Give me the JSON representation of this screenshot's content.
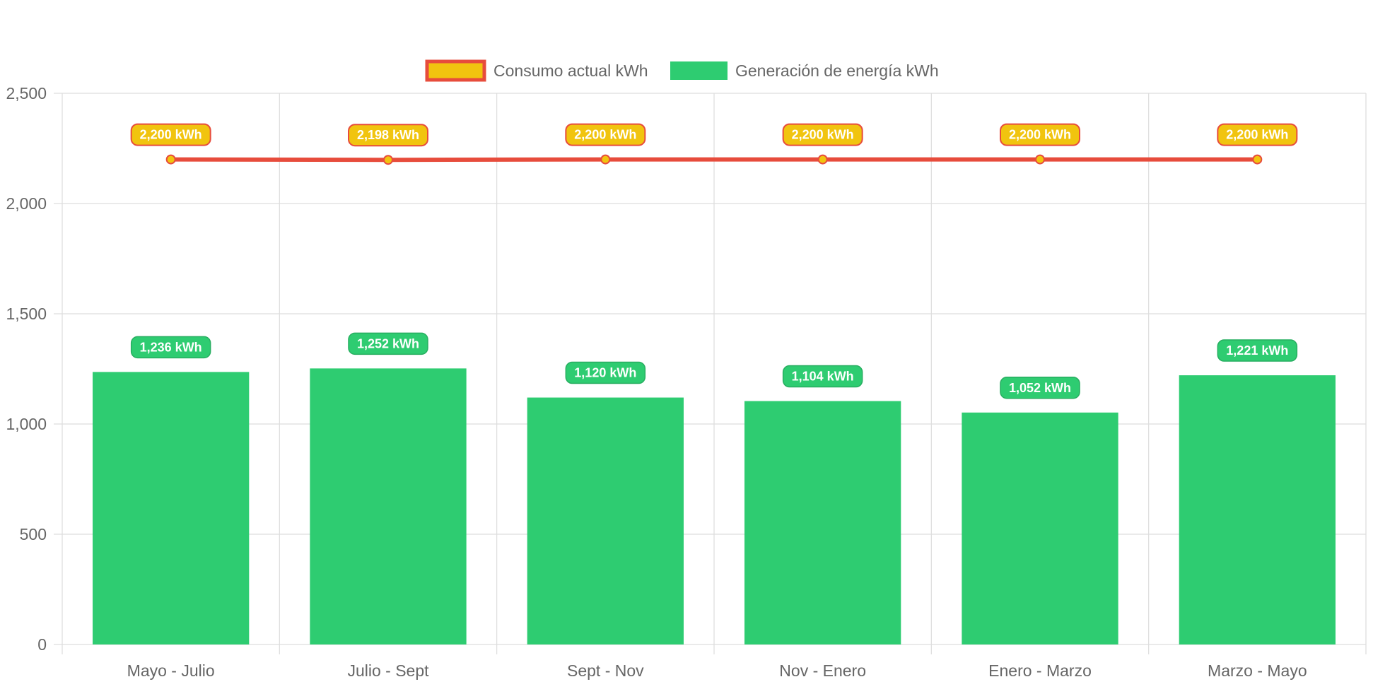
{
  "chart_data": {
    "type": "bar",
    "categories": [
      "Mayo - Julio",
      "Julio - Sept",
      "Sept - Nov",
      "Nov - Enero",
      "Enero - Marzo",
      "Marzo - Mayo"
    ],
    "series": [
      {
        "name": "Consumo actual kWh",
        "type": "line",
        "values": [
          2200,
          2198,
          2200,
          2200,
          2200,
          2200
        ],
        "data_labels": [
          "2,200 kWh",
          "2,198 kWh",
          "2,200 kWh",
          "2,200 kWh",
          "2,200 kWh",
          "2,200 kWh"
        ],
        "color": "#e74c3c",
        "fill_color": "#f1c40f"
      },
      {
        "name": "Generación de energía kWh",
        "type": "bar",
        "values": [
          1236,
          1252,
          1120,
          1104,
          1052,
          1221
        ],
        "data_labels": [
          "1,236 kWh",
          "1,252 kWh",
          "1,120 kWh",
          "1,104 kWh",
          "1,052 kWh",
          "1,221 kWh"
        ],
        "color": "#2ecc71"
      }
    ],
    "ylim": [
      0,
      2500
    ],
    "yticks": [
      0,
      500,
      1000,
      1500,
      2000,
      2500
    ],
    "ytick_labels": [
      "0",
      "500",
      "1,000",
      "1,500",
      "2,000",
      "2,500"
    ],
    "title": "",
    "xlabel": "",
    "ylabel": "",
    "grid": true,
    "legend_position": "top-center"
  },
  "colors": {
    "grid": "#dddddd",
    "tick_text": "#666666"
  }
}
